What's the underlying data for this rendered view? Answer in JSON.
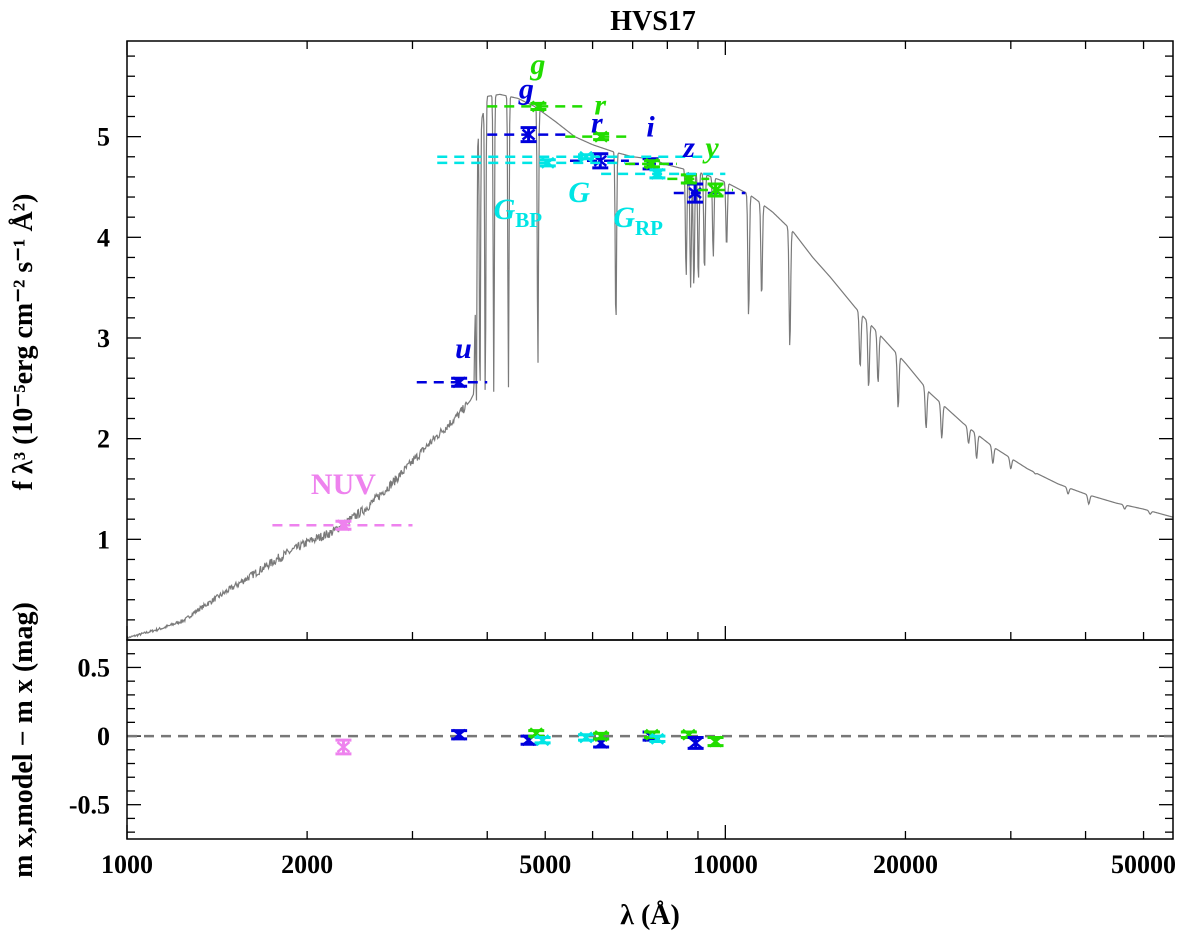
{
  "chart_data": [
    {
      "panel": "top",
      "type": "line",
      "title": "HVS17",
      "ylabel": "f λ³ (10⁻⁵erg cm⁻² s⁻¹ Å²)",
      "xscale": "log",
      "xlim": [
        1000,
        56000
      ],
      "ylim": [
        0.0,
        5.95
      ],
      "yticks": [
        1,
        2,
        3,
        4,
        5
      ],
      "ytick_labels": [
        "1",
        "2",
        "3",
        "4",
        "5"
      ],
      "model_spectrum": {
        "color": "#7a7a7a",
        "continuum_x": [
          1000,
          1150,
          1250,
          1300,
          1500,
          1800,
          2000,
          2200,
          2500,
          2800,
          3200,
          3600,
          3750,
          3800,
          3850,
          4000,
          4200,
          4500,
          4800,
          5200,
          5600,
          6000,
          6500,
          7000,
          7500,
          8000,
          8500,
          9000,
          10000,
          11000,
          12000,
          13000,
          14000,
          15000,
          16500,
          18000,
          20000,
          22000,
          25000,
          28000,
          32000,
          36000,
          40000,
          45000,
          50000,
          56000
        ],
        "continuum_y": [
          0.02,
          0.12,
          0.2,
          0.28,
          0.52,
          0.82,
          0.97,
          1.07,
          1.3,
          1.58,
          1.95,
          2.25,
          2.38,
          2.45,
          5.0,
          5.4,
          5.42,
          5.38,
          5.3,
          5.15,
          5.0,
          4.92,
          4.85,
          4.8,
          4.78,
          4.72,
          4.68,
          4.65,
          4.55,
          4.42,
          4.25,
          4.05,
          3.8,
          3.6,
          3.3,
          3.05,
          2.75,
          2.45,
          2.15,
          1.92,
          1.7,
          1.55,
          1.45,
          1.36,
          1.3,
          1.22
        ],
        "absorption_lines": [
          {
            "x": 3835,
            "y": 2.25
          },
          {
            "x": 3889,
            "y": 2.3
          },
          {
            "x": 3970,
            "y": 2.35
          },
          {
            "x": 4102,
            "y": 2.45
          },
          {
            "x": 4340,
            "y": 2.5
          },
          {
            "x": 4861,
            "y": 2.7
          },
          {
            "x": 6563,
            "y": 3.1
          },
          {
            "x": 8600,
            "y": 3.6
          },
          {
            "x": 8750,
            "y": 3.5
          },
          {
            "x": 8860,
            "y": 3.5
          },
          {
            "x": 9015,
            "y": 3.55
          },
          {
            "x": 9229,
            "y": 3.65
          },
          {
            "x": 9546,
            "y": 3.8
          },
          {
            "x": 10049,
            "y": 3.9
          },
          {
            "x": 10938,
            "y": 3.2
          },
          {
            "x": 11500,
            "y": 3.4
          },
          {
            "x": 12818,
            "y": 2.9
          },
          {
            "x": 16800,
            "y": 2.7
          },
          {
            "x": 17360,
            "y": 2.5
          },
          {
            "x": 18000,
            "y": 2.55
          },
          {
            "x": 19446,
            "y": 2.3
          },
          {
            "x": 21655,
            "y": 2.1
          },
          {
            "x": 23000,
            "y": 2.0
          },
          {
            "x": 25500,
            "y": 1.95
          },
          {
            "x": 26300,
            "y": 1.8
          },
          {
            "x": 28000,
            "y": 1.75
          },
          {
            "x": 30000,
            "y": 1.7
          },
          {
            "x": 33000,
            "y": 1.65
          },
          {
            "x": 37400,
            "y": 1.45
          },
          {
            "x": 40500,
            "y": 1.35
          },
          {
            "x": 46500,
            "y": 1.3
          },
          {
            "x": 51300,
            "y": 1.25
          }
        ]
      },
      "photometry": [
        {
          "band": "NUV",
          "color": "#ee82ee",
          "x": 2300,
          "y": 1.14,
          "err": 0.04,
          "x_lo": 1750,
          "x_hi": 3000,
          "y_line": 1.14,
          "label": "NUV",
          "label_x": 2300,
          "label_y": 1.45
        },
        {
          "band": "u",
          "color": "#0000dd",
          "x": 3590,
          "y": 2.56,
          "err": 0.04,
          "x_lo": 3050,
          "x_hi": 4000,
          "y_line": 2.56,
          "label": "u",
          "label_x": 3650,
          "label_y": 2.8
        },
        {
          "band": "g",
          "color": "#0000dd",
          "x": 4690,
          "y": 5.02,
          "err": 0.07,
          "x_lo": 4000,
          "x_hi": 5500,
          "y_line": 5.02,
          "label": "g",
          "label_x": 4650,
          "label_y": 5.38
        },
        {
          "band": "r",
          "color": "#0000dd",
          "x": 6180,
          "y": 4.76,
          "err": 0.07,
          "x_lo": 5500,
          "x_hi": 6900,
          "y_line": 4.76,
          "label": "r",
          "label_x": 6100,
          "label_y": 5.04
        },
        {
          "band": "i",
          "color": "#0000dd",
          "x": 7500,
          "y": 4.73,
          "err": 0.05,
          "x_lo": 6900,
          "x_hi": 8200,
          "y_line": 4.73,
          "label": "i",
          "label_x": 7500,
          "label_y": 5.0
        },
        {
          "band": "z",
          "color": "#0000dd",
          "x": 8900,
          "y": 4.44,
          "err": 0.09,
          "x_lo": 8200,
          "x_hi": 10800,
          "y_line": 4.44,
          "label": "z",
          "label_x": 8700,
          "label_y": 4.8
        },
        {
          "band": "g (PS1)",
          "color": "#22dd00",
          "x": 4870,
          "y": 5.3,
          "err": 0.03,
          "x_lo": 4000,
          "x_hi": 5800,
          "y_line": 5.3,
          "label": "g",
          "label_x": 4860,
          "label_y": 5.62
        },
        {
          "band": "r (PS1)",
          "color": "#22dd00",
          "x": 6200,
          "y": 5.0,
          "err": 0.03,
          "x_lo": 5400,
          "x_hi": 7000,
          "y_line": 5.0,
          "label": "r",
          "label_x": 6180,
          "label_y": 5.22
        },
        {
          "band": "i (PS1)",
          "color": "#22dd00",
          "x": 7540,
          "y": 4.73,
          "err": 0.03,
          "x_lo": 6800,
          "x_hi": 8300,
          "y_line": 4.73,
          "label": "",
          "label_x": 0,
          "label_y": 0
        },
        {
          "band": "z (PS1)",
          "color": "#22dd00",
          "x": 8690,
          "y": 4.58,
          "err": 0.04,
          "x_lo": 8000,
          "x_hi": 9400,
          "y_line": 4.58,
          "label": "",
          "label_x": 0,
          "label_y": 0
        },
        {
          "band": "y (PS1)",
          "color": "#22dd00",
          "x": 9630,
          "y": 4.47,
          "err": 0.06,
          "x_lo": 9000,
          "x_hi": 10300,
          "y_line": 4.47,
          "label": "y",
          "label_x": 9500,
          "label_y": 4.8
        },
        {
          "band": "G_BP",
          "color": "#00e5e5",
          "x": 5050,
          "y": 4.74,
          "err": 0.03,
          "x_lo": 3300,
          "x_hi": 6800,
          "y_line": 4.74,
          "label": "",
          "label_x": 0,
          "label_y": 0
        },
        {
          "band": "G",
          "color": "#00e5e5",
          "x": 5850,
          "y": 4.8,
          "err": 0.02,
          "x_lo": 3300,
          "x_hi": 10000,
          "y_line": 4.8,
          "label": "",
          "label_x": 0,
          "label_y": 0
        },
        {
          "band": "G_RP",
          "color": "#00e5e5",
          "x": 7700,
          "y": 4.63,
          "err": 0.04,
          "x_lo": 6200,
          "x_hi": 10000,
          "y_line": 4.63,
          "label": "",
          "label_x": 0,
          "label_y": 0
        }
      ],
      "annotations": [
        {
          "text": "G",
          "sub": "BP",
          "color": "#00e5e5",
          "x": 4500,
          "y": 4.18
        },
        {
          "text": "G",
          "sub": "",
          "color": "#00e5e5",
          "x": 5700,
          "y": 4.35
        },
        {
          "text": "G",
          "sub": "RP",
          "color": "#00e5e5",
          "x": 7150,
          "y": 4.1
        }
      ]
    },
    {
      "panel": "bottom",
      "type": "scatter",
      "xlabel": "λ (Å)",
      "ylabel": "m x,model − m x (mag)",
      "xscale": "log",
      "xlim": [
        1000,
        56000
      ],
      "ylim": [
        -0.75,
        0.7
      ],
      "yticks": [
        0.5,
        0,
        -0.5
      ],
      "ytick_labels": [
        "0.5",
        "0",
        "-0.5"
      ],
      "xticks": [
        1000,
        2000,
        5000,
        10000,
        20000,
        50000
      ],
      "xtick_labels": [
        "1000",
        "2000",
        "5000",
        "10000",
        "20000",
        "50000"
      ],
      "zero_line": 0,
      "residuals": [
        {
          "band": "NUV",
          "color": "#ee82ee",
          "x": 2300,
          "y": -0.08,
          "err": 0.05
        },
        {
          "band": "u",
          "color": "#0000dd",
          "x": 3590,
          "y": 0.01,
          "err": 0.03
        },
        {
          "band": "g",
          "color": "#0000dd",
          "x": 4690,
          "y": -0.03,
          "err": 0.03
        },
        {
          "band": "g (PS1)",
          "color": "#22dd00",
          "x": 4830,
          "y": 0.02,
          "err": 0.02
        },
        {
          "band": "G_BP",
          "color": "#00e5e5",
          "x": 4950,
          "y": -0.03,
          "err": 0.02
        },
        {
          "band": "G",
          "color": "#00e5e5",
          "x": 5850,
          "y": -0.01,
          "err": 0.02
        },
        {
          "band": "r",
          "color": "#0000dd",
          "x": 6200,
          "y": -0.05,
          "err": 0.03
        },
        {
          "band": "r (PS1)",
          "color": "#22dd00",
          "x": 6200,
          "y": 0.0,
          "err": 0.02
        },
        {
          "band": "i",
          "color": "#0000dd",
          "x": 7500,
          "y": 0.0,
          "err": 0.03
        },
        {
          "band": "i (PS1)",
          "color": "#22dd00",
          "x": 7540,
          "y": 0.01,
          "err": 0.02
        },
        {
          "band": "G_RP",
          "color": "#00e5e5",
          "x": 7700,
          "y": -0.02,
          "err": 0.02
        },
        {
          "band": "z (PS1)",
          "color": "#22dd00",
          "x": 8690,
          "y": 0.01,
          "err": 0.02
        },
        {
          "band": "z",
          "color": "#0000dd",
          "x": 8920,
          "y": -0.05,
          "err": 0.04
        },
        {
          "band": "y (PS1)",
          "color": "#22dd00",
          "x": 9630,
          "y": -0.04,
          "err": 0.03
        }
      ]
    }
  ]
}
